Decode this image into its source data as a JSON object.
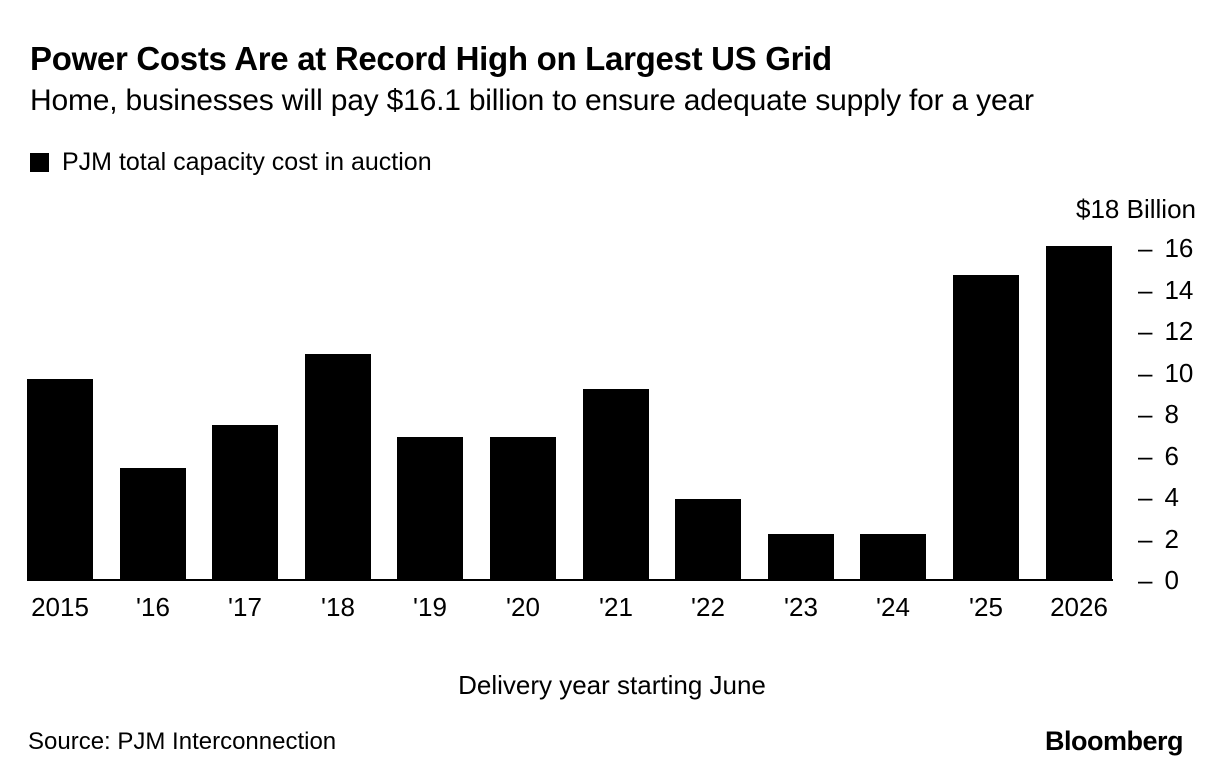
{
  "header": {
    "title": "Power Costs Are at Record High on Largest US Grid",
    "subtitle": "Home, businesses will pay $16.1 billion to ensure adequate supply for a year"
  },
  "legend": {
    "label": "PJM total capacity cost in auction",
    "swatch_color": "#000000"
  },
  "chart_data": {
    "type": "bar",
    "title": "PJM total capacity cost in auction",
    "categories": [
      "2015",
      "'16",
      "'17",
      "'18",
      "'19",
      "'20",
      "'21",
      "'22",
      "'23",
      "'24",
      "'25",
      "2026"
    ],
    "values": [
      9.7,
      5.4,
      7.5,
      10.9,
      6.9,
      6.9,
      9.2,
      3.9,
      2.2,
      2.2,
      14.7,
      16.1
    ],
    "unit": "$ billion",
    "y_axis_top_label": "$18 Billion",
    "yticks": [
      16,
      14,
      12,
      10,
      8,
      6,
      4,
      2,
      0
    ],
    "ylim": [
      0,
      18
    ],
    "xlabel": "Delivery year starting June",
    "bar_color": "#000000",
    "grid": false,
    "tick_side": "right",
    "legend_position": "top-left"
  },
  "footer": {
    "source": "Source: PJM Interconnection",
    "brand": "Bloomberg"
  }
}
